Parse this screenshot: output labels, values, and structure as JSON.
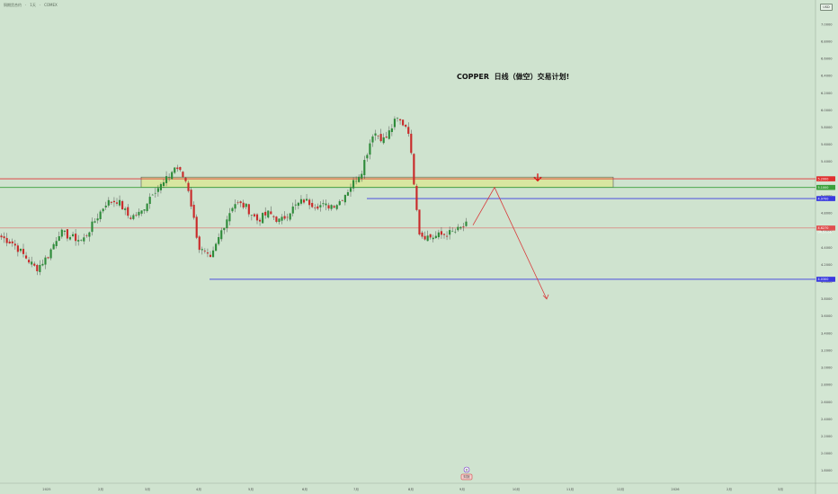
{
  "header": {
    "symbol": "铜期货合约",
    "sep1": "·",
    "interval": "1天",
    "sep2": "·",
    "exchange": "COMEX"
  },
  "currency": "USD",
  "annotation": "COPPER  日线（做空）交易计划!",
  "chart_data": {
    "type": "candlestick",
    "ylim": [
      1.78,
      7.4
    ],
    "y_ticks": [
      "7.2000",
      "7.0000",
      "6.8000",
      "6.6000",
      "6.4000",
      "6.2000",
      "6.0000",
      "5.8000",
      "5.6000",
      "5.4000",
      "5.2000",
      "5.0000",
      "4.8000",
      "4.6000",
      "4.4000",
      "4.2000",
      "4.0000",
      "3.8000",
      "3.6000",
      "3.4000",
      "3.2000",
      "3.0000",
      "2.8000",
      "2.6000",
      "2.4000",
      "2.2000",
      "2.0000",
      "1.8000"
    ],
    "x_ticks": [
      "2025",
      "2月",
      "3月",
      "4月",
      "5月",
      "6月",
      "7月",
      "8月",
      "9月",
      "10月",
      "11月",
      "12月",
      "2026",
      "2月",
      "3月"
    ],
    "ohlc_anchors": [
      [
        4.52,
        4.48
      ],
      [
        4.45,
        4.44
      ],
      [
        4.3,
        4.31
      ],
      [
        4.15,
        4.1
      ],
      [
        4.3,
        4.31
      ],
      [
        4.58,
        4.56
      ],
      [
        4.52,
        4.5
      ],
      [
        4.48,
        4.47
      ],
      [
        4.7,
        4.69
      ],
      [
        4.92,
        4.91
      ],
      [
        4.95,
        4.94
      ],
      [
        4.75,
        4.72
      ],
      [
        4.8,
        4.81
      ],
      [
        5.05,
        5.04
      ],
      [
        5.15,
        5.16
      ],
      [
        5.35,
        5.33
      ],
      [
        5.15,
        5.14
      ],
      [
        4.4,
        4.38
      ],
      [
        4.25,
        4.2
      ],
      [
        4.62,
        4.64
      ],
      [
        4.92,
        4.9
      ],
      [
        4.88,
        4.87
      ],
      [
        4.72,
        4.7
      ],
      [
        4.8,
        4.82
      ],
      [
        4.7,
        4.69
      ],
      [
        4.85,
        4.86
      ],
      [
        4.95,
        4.97
      ],
      [
        4.9,
        4.88
      ],
      [
        4.88,
        4.86
      ],
      [
        4.92,
        4.93
      ],
      [
        5.1,
        5.12
      ],
      [
        5.3,
        5.28
      ],
      [
        5.75,
        5.73
      ],
      [
        5.65,
        5.66
      ],
      [
        5.9,
        5.92
      ],
      [
        5.8,
        5.78
      ],
      [
        4.55,
        4.5
      ],
      [
        4.52,
        4.51
      ],
      [
        4.55,
        4.54
      ],
      [
        4.58,
        4.59
      ],
      [
        4.66,
        4.68
      ]
    ],
    "levels": [
      {
        "label": "5.2000",
        "value": 5.2,
        "color": "#e03030"
      },
      {
        "label": "5.1000",
        "value": 5.1,
        "color": "#3aa03a"
      },
      {
        "label": "4.9700",
        "value": 4.97,
        "color": "#3a3ae0"
      },
      {
        "label": "4.6270",
        "value": 4.627,
        "color": "#e05050"
      },
      {
        "label": "4.0300",
        "value": 4.03,
        "color": "#3a3ae0"
      }
    ],
    "current_price": "4.6270",
    "current_price_sub": "04:57:06",
    "zone": {
      "low": 5.1,
      "high": 5.22
    },
    "projection": [
      [
        4.66,
        0.0
      ],
      [
        5.1,
        1.0
      ],
      [
        3.8,
        2.3
      ]
    ],
    "event_marker": "D",
    "event_label": "财报"
  },
  "colors": {
    "background": "#cfe3cf",
    "up": "#2e8b3a",
    "down": "#c92a2a",
    "zone_fill": "#d8e6a0",
    "arrow": "#d83b3b"
  }
}
